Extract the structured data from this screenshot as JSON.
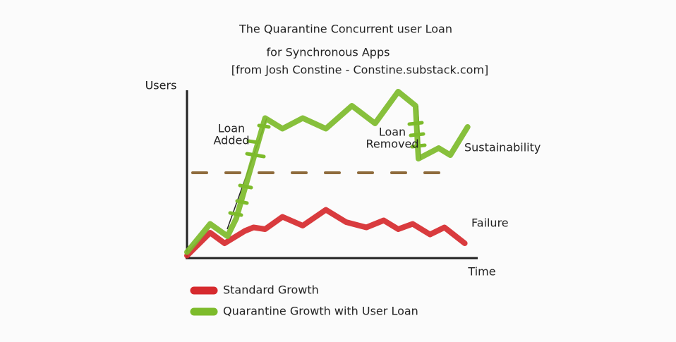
{
  "chart_data": {
    "type": "line",
    "title": "The Quarantine Concurrent user Loan",
    "subtitle": "for Synchronous Apps",
    "source": "[from Josh Constine - Constine.substack.com]",
    "y_label": "Users",
    "x_label": "Time",
    "xlim": [
      0,
      100
    ],
    "ylim": [
      0,
      100
    ],
    "series": [
      {
        "name": "Standard Growth",
        "color": "#d62a2e",
        "x": [
          0,
          8,
          13,
          20,
          23,
          27,
          33,
          40,
          48,
          55,
          62,
          68,
          73,
          78,
          84,
          89,
          96
        ],
        "values": [
          1,
          14,
          8,
          15,
          17,
          16,
          23,
          18,
          27,
          20,
          17,
          21,
          16,
          19,
          13,
          17,
          8
        ]
      },
      {
        "name": "Quarantine Growth with User Loan",
        "color": "#7dbb2b",
        "x": [
          0,
          8,
          14,
          17,
          27,
          33,
          40,
          48,
          57,
          65,
          73,
          79,
          80,
          87,
          91,
          97
        ],
        "values": [
          3,
          19,
          12,
          22,
          79,
          73,
          79,
          73,
          86,
          76,
          94,
          86,
          56,
          62,
          58,
          74
        ]
      }
    ],
    "reference_line": {
      "value": 48,
      "color": "#8e6b3c"
    },
    "annotations": [
      {
        "lines": [
          "Loan",
          "Added"
        ]
      },
      {
        "lines": [
          "Loan",
          "Removed"
        ]
      },
      {
        "lines": [
          "Sustainability"
        ]
      },
      {
        "lines": [
          "Failure"
        ]
      }
    ]
  }
}
